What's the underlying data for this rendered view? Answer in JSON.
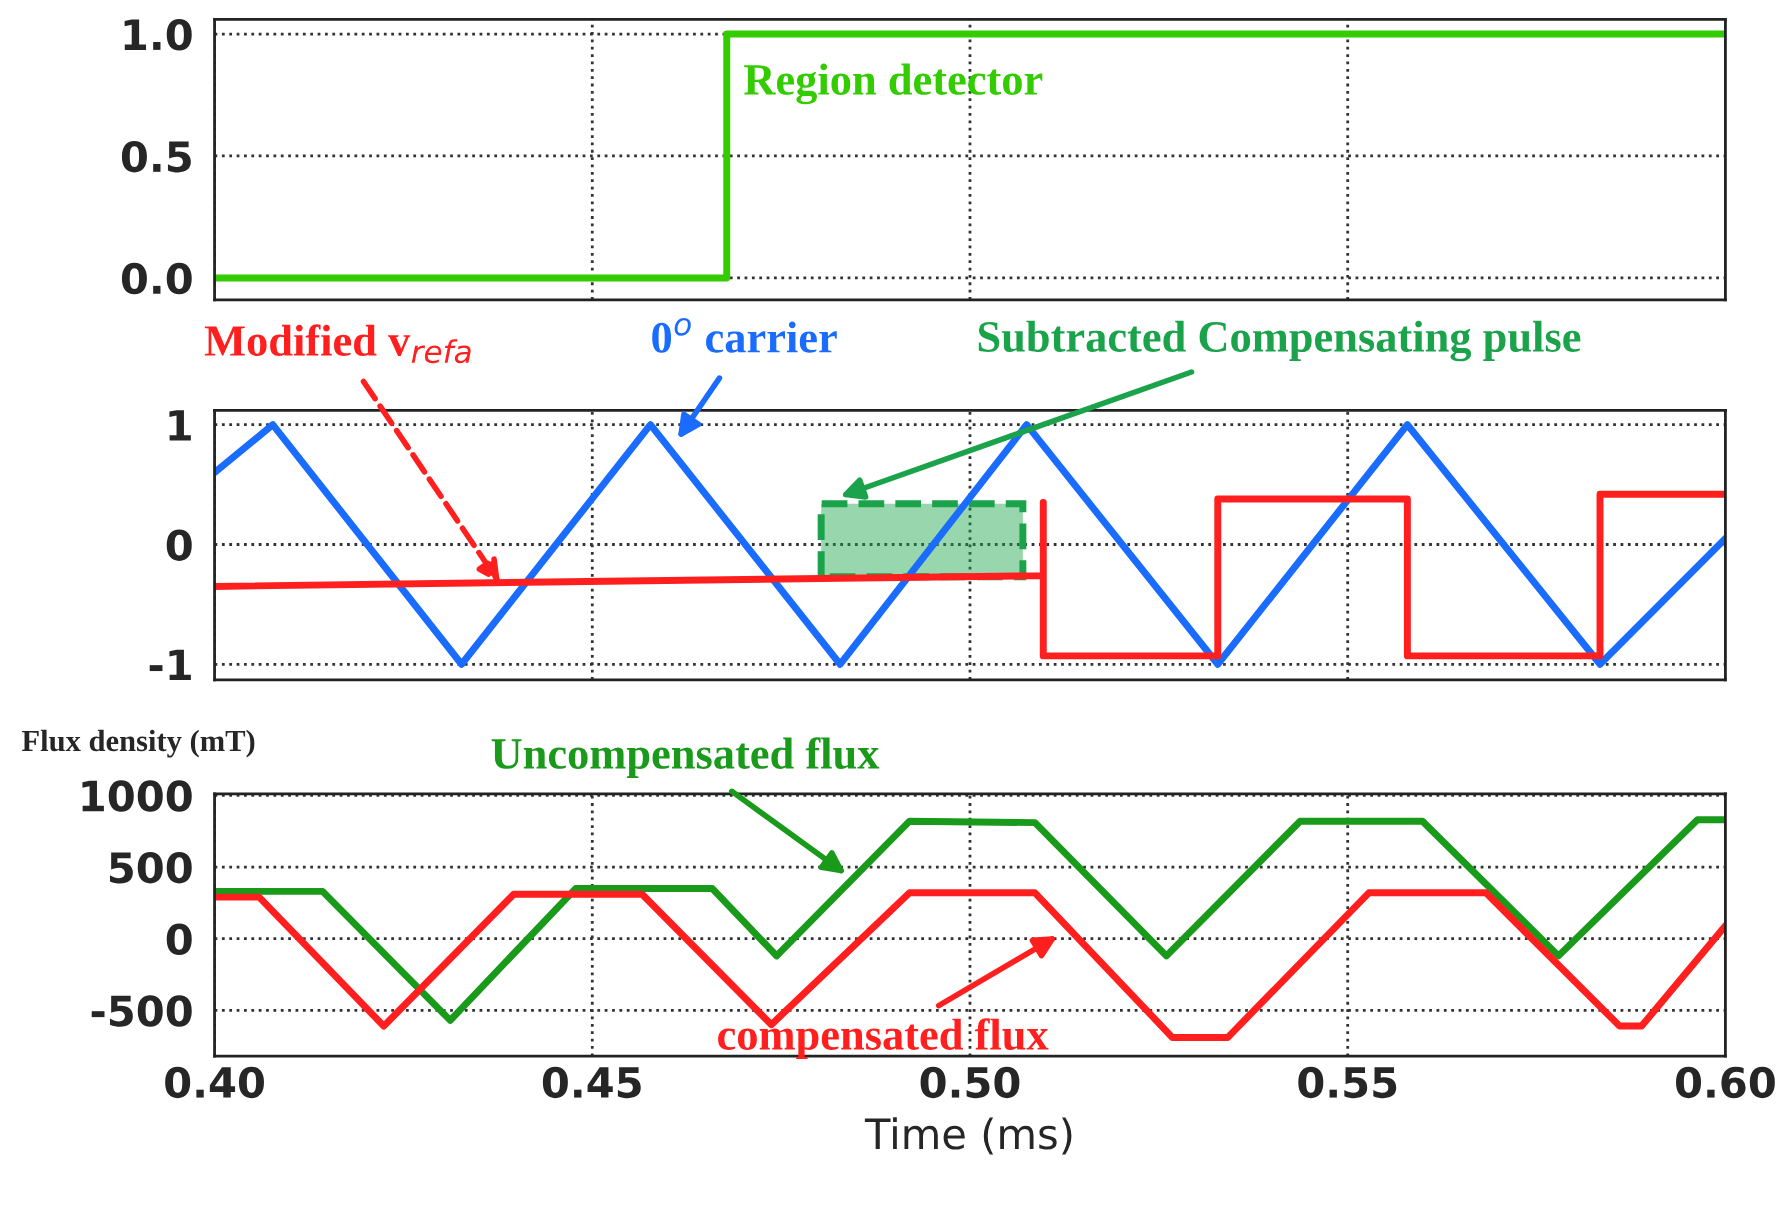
{
  "chart_data": [
    {
      "type": "step",
      "x": [
        0.4,
        0.4678,
        0.6
      ],
      "series": [
        {
          "color": "#33cc00",
          "values": [
            0,
            1,
            1
          ]
        }
      ],
      "xlim": [
        0.4,
        0.6
      ],
      "xticks": [
        0.4,
        0.45,
        0.5,
        0.55,
        0.6
      ],
      "ylim": [
        -0.09,
        1.06
      ],
      "yticks": [
        {
          "value": 0,
          "label": "0.0"
        },
        0.5,
        {
          "value": 1,
          "label": "1.0"
        }
      ],
      "grid": true,
      "tick_labels": "y",
      "annotations": [
        "Region detector"
      ]
    },
    {
      "type": "line",
      "series": [
        {
          "color": "#1a6cff",
          "x": [
            0.4,
            0.4077,
            0.4327,
            0.4577,
            0.4828,
            0.5075,
            0.5328,
            0.5579,
            0.5834,
            0.6
          ],
          "values": [
            0.6,
            1,
            -1,
            1,
            -1,
            1,
            -1,
            1,
            -1,
            0.05
          ]
        },
        {
          "color": "#ff1f1f",
          "x": [
            0.4,
            0.5097,
            0.5097,
            0.5097,
            0.5328,
            0.5328,
            0.5579,
            0.5579,
            0.5834,
            0.5834,
            0.6
          ],
          "values": [
            -0.35,
            -0.26,
            0.35,
            -0.93,
            -0.93,
            0.38,
            0.38,
            -0.93,
            -0.93,
            0.42,
            0.42
          ]
        },
        {
          "type": "area",
          "color": "#1aa34a",
          "x": [
            0.4803,
            0.4803,
            0.507,
            0.507
          ],
          "values": [
            -0.27,
            0.34,
            0.34,
            -0.27
          ],
          "line_style": "dashed"
        }
      ],
      "xlim": [
        0.4,
        0.6
      ],
      "xticks": [
        0.4,
        0.45,
        0.5,
        0.55,
        0.6
      ],
      "ylim": [
        -1.13,
        1.12
      ],
      "yticks": [
        -1,
        0,
        1
      ],
      "grid": true,
      "tick_labels": "y",
      "annotations": [
        {
          "text": "Modified v$_{refa}$",
          "x": 0.4378,
          "y": -0.33
        },
        {
          "text": "0$^{o}$ carrier",
          "x": 0.4613,
          "y": 0.88
        },
        {
          "text": "Subtracted Compensating pulse",
          "x": 0.4828,
          "y": 0.4
        }
      ]
    },
    {
      "type": "line",
      "xlabel": "Time (ms)",
      "ylabel": "Flux density (mT)",
      "series": [
        {
          "color": "#1a9a1a",
          "x": [
            0.4,
            0.4143,
            0.4312,
            0.4478,
            0.4659,
            0.4744,
            0.492,
            0.5086,
            0.526,
            0.5437,
            0.5599,
            0.5779,
            0.5963,
            0.6
          ],
          "values": [
            330,
            330,
            -570,
            350,
            350,
            -120,
            820,
            810,
            -120,
            820,
            820,
            -120,
            830,
            830
          ]
        },
        {
          "color": "#ff1f1f",
          "x": [
            0.4,
            0.4059,
            0.4224,
            0.4396,
            0.4566,
            0.4737,
            0.492,
            0.5086,
            0.5268,
            0.5341,
            0.5528,
            0.5683,
            0.586,
            0.5889,
            0.6
          ],
          "values": [
            290,
            290,
            -610,
            310,
            310,
            -600,
            320,
            320,
            -690,
            -690,
            320,
            320,
            -610,
            -610,
            90
          ]
        }
      ],
      "xlim": [
        0.4,
        0.6
      ],
      "xticks": [
        {
          "value": 0.4,
          "label": "0.40"
        },
        0.45,
        {
          "value": 0.5,
          "label": "0.50"
        },
        0.55,
        {
          "value": 0.6,
          "label": "0.60"
        }
      ],
      "ylim": [
        -820,
        1010
      ],
      "yticks": [
        -500,
        0,
        500,
        1000
      ],
      "grid": true,
      "annotations": [
        {
          "text": "Uncompensated flux",
          "x": 0.4836,
          "y": 450
        },
        {
          "text": "compensated flux",
          "x": 0.5116,
          "y": 20
        }
      ]
    }
  ]
}
